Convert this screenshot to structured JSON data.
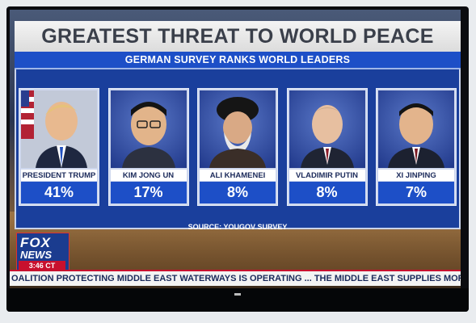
{
  "graphic": {
    "title": "GREATEST THREAT TO WORLD PEACE",
    "subtitle": "GERMAN SURVEY RANKS WORLD LEADERS",
    "source": "SOURCE: YOUGOV SURVEY"
  },
  "leaders": [
    {
      "name": "PRESIDENT TRUMP",
      "percent": "41%",
      "value": 41,
      "bg": "#c0c7d8"
    },
    {
      "name": "KIM JONG UN",
      "percent": "17%",
      "value": 17,
      "bg": "#3c5cb8"
    },
    {
      "name": "ALI KHAMENEI",
      "percent": "8%",
      "value": 8,
      "bg": "#3c5cb8"
    },
    {
      "name": "VLADIMIR PUTIN",
      "percent": "8%",
      "value": 8,
      "bg": "#3c5cb8"
    },
    {
      "name": "XI JINPING",
      "percent": "7%",
      "value": 7,
      "bg": "#3c5cb8"
    }
  ],
  "network": {
    "logo_line1": "FOX",
    "logo_line2": "NEWS",
    "time": "3:46 CT"
  },
  "ticker": {
    "text": "OALITION PROTECTING MIDDLE EAST WATERWAYS IS OPERATING ...   THE MIDDLE EAST SUPPLIES MORE THA"
  },
  "colors": {
    "graphic_blue": "#1d4fc7",
    "panel_navy": "#1a3f9c",
    "fox_red": "#c8102e"
  }
}
